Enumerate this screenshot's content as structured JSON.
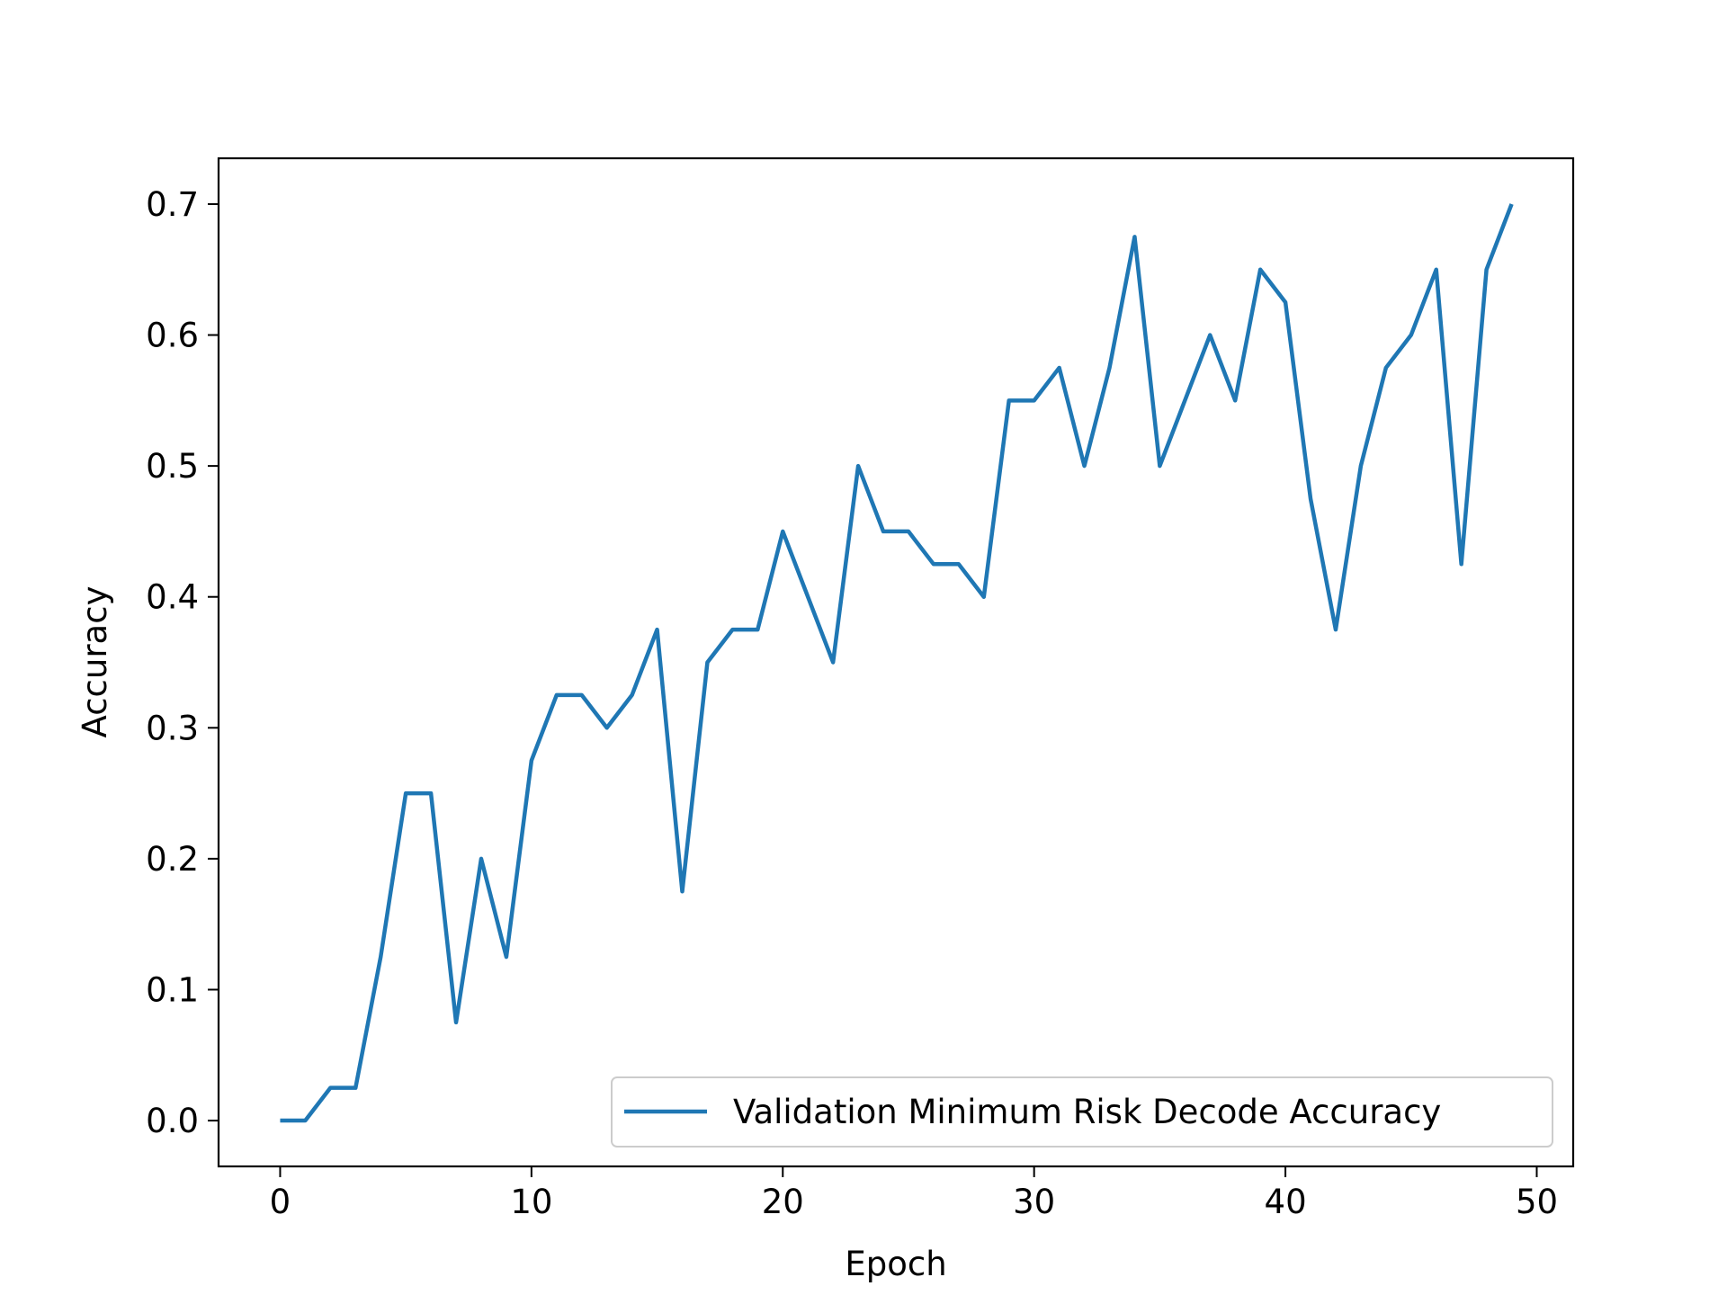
{
  "chart_data": {
    "type": "line",
    "title": "",
    "xlabel": "Epoch",
    "ylabel": "Accuracy",
    "xlim": [
      -2.45,
      51.45
    ],
    "ylim": [
      -0.035,
      0.735
    ],
    "xticks": [
      0,
      10,
      20,
      30,
      40,
      50
    ],
    "yticks": [
      0.0,
      0.1,
      0.2,
      0.3,
      0.4,
      0.5,
      0.6,
      0.7
    ],
    "xtick_labels": [
      "0",
      "10",
      "20",
      "30",
      "40",
      "50"
    ],
    "ytick_labels": [
      "0.0",
      "0.1",
      "0.2",
      "0.3",
      "0.4",
      "0.5",
      "0.6",
      "0.7"
    ],
    "grid": false,
    "legend": {
      "placement": "lower-right"
    },
    "series": [
      {
        "name": "Validation Minimum Risk Decode Accuracy",
        "color": "#1f77b4",
        "x": [
          0,
          1,
          2,
          3,
          4,
          5,
          6,
          7,
          8,
          9,
          10,
          11,
          12,
          13,
          14,
          15,
          16,
          17,
          18,
          19,
          20,
          21,
          22,
          23,
          24,
          25,
          26,
          27,
          28,
          29,
          30,
          31,
          32,
          33,
          34,
          35,
          36,
          37,
          38,
          39,
          40,
          41,
          42,
          43,
          44,
          45,
          46,
          47,
          48,
          49
        ],
        "values": [
          0.0,
          0.0,
          0.025,
          0.025,
          0.125,
          0.25,
          0.25,
          0.075,
          0.2,
          0.125,
          0.275,
          0.325,
          0.325,
          0.3,
          0.325,
          0.375,
          0.175,
          0.35,
          0.375,
          0.375,
          0.45,
          0.4,
          0.35,
          0.5,
          0.45,
          0.45,
          0.425,
          0.425,
          0.4,
          0.55,
          0.55,
          0.575,
          0.5,
          0.575,
          0.675,
          0.5,
          0.55,
          0.6,
          0.55,
          0.65,
          0.625,
          0.475,
          0.375,
          0.5,
          0.575,
          0.6,
          0.65,
          0.425,
          0.65,
          0.7
        ]
      }
    ]
  }
}
